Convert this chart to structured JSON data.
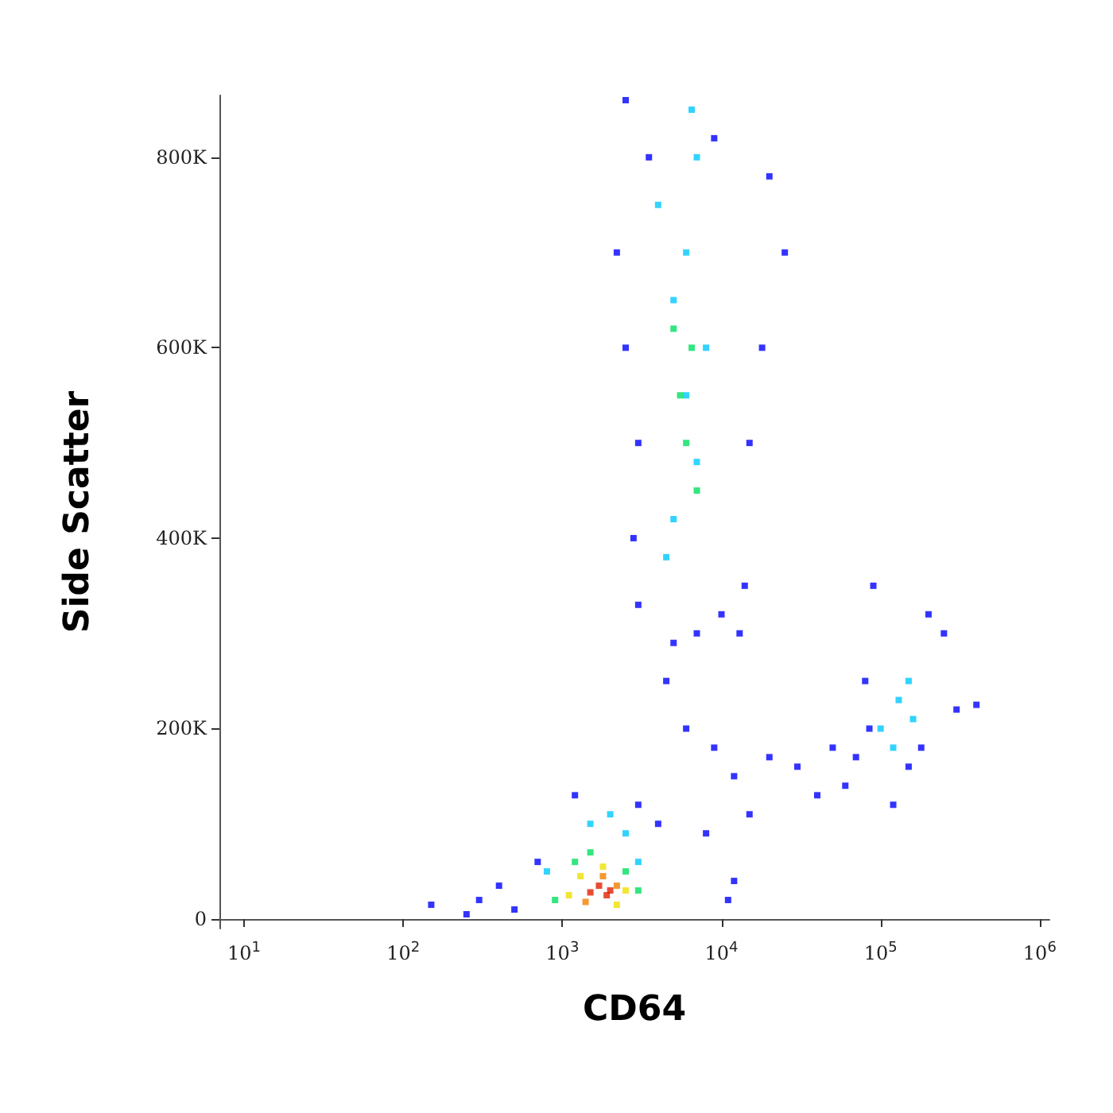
{
  "chart_data": {
    "type": "scatter",
    "xlabel": "CD64",
    "ylabel": "Side Scatter",
    "log": "x",
    "marker": "square",
    "grid": false,
    "xlim": [
      7,
      1150000
    ],
    "xticks": [
      {
        "value": 10,
        "label": "10$^{1}$"
      },
      {
        "value": 100,
        "label": "10$^{2}$"
      },
      {
        "value": 1000,
        "label": "10$^{3}$"
      },
      {
        "value": 10000,
        "label": "10$^{4}$"
      },
      {
        "value": 100000,
        "label": "10$^{5}$"
      },
      {
        "value": 1000000,
        "label": "10$^{6}$"
      }
    ],
    "ylim": [
      -10000,
      865000
    ],
    "yticks": [
      0,
      {
        "value": 200000,
        "label": "200K"
      },
      {
        "value": 400000,
        "label": "400K"
      },
      {
        "value": 600000,
        "label": "600K"
      },
      {
        "value": 800000,
        "label": "800K"
      }
    ],
    "series": [
      {
        "color": "#0000ff",
        "x": [
          300,
          400,
          500,
          700,
          150,
          250,
          3000,
          4000,
          1200,
          8000,
          12000,
          15000,
          2500,
          3500,
          20000,
          25000,
          18000,
          9000,
          2200,
          3000,
          15000,
          2800,
          2500,
          14000,
          13000,
          3000,
          5000,
          7000,
          10000,
          4500,
          6000,
          9000,
          12000,
          30000,
          40000,
          20000,
          50000,
          70000,
          85000,
          60000,
          80000,
          150000,
          250000,
          300000,
          200000,
          90000,
          120000,
          180000,
          400000,
          11000
        ],
        "values": [
          20000,
          35000,
          10000,
          60000,
          15000,
          5000,
          120000,
          100000,
          130000,
          90000,
          40000,
          110000,
          860000,
          800000,
          780000,
          700000,
          600000,
          820000,
          700000,
          500000,
          500000,
          400000,
          600000,
          350000,
          300000,
          330000,
          290000,
          300000,
          320000,
          250000,
          200000,
          180000,
          150000,
          160000,
          130000,
          170000,
          180000,
          170000,
          200000,
          140000,
          250000,
          160000,
          300000,
          220000,
          320000,
          350000,
          120000,
          180000,
          225000,
          20000
        ]
      },
      {
        "color": "#00c8ff",
        "x": [
          4000,
          5000,
          6000,
          7000,
          8000,
          5000,
          6000,
          4500,
          7000,
          6500,
          100000,
          130000,
          150000,
          120000,
          160000,
          1500,
          2500,
          800,
          3000,
          2000
        ],
        "values": [
          750000,
          650000,
          550000,
          480000,
          600000,
          420000,
          700000,
          380000,
          800000,
          850000,
          200000,
          230000,
          250000,
          180000,
          210000,
          100000,
          90000,
          50000,
          60000,
          110000
        ]
      },
      {
        "color": "#00e060",
        "x": [
          5500,
          6000,
          6500,
          5000,
          7000,
          1200,
          1500,
          2500,
          3000,
          900
        ],
        "values": [
          550000,
          500000,
          600000,
          620000,
          450000,
          60000,
          70000,
          50000,
          30000,
          20000
        ]
      },
      {
        "color": "#f0e000",
        "x": [
          1300,
          1800,
          2500,
          1100,
          2200
        ],
        "values": [
          45000,
          55000,
          30000,
          25000,
          15000
        ]
      },
      {
        "color": "#f08000",
        "x": [
          1400,
          2200,
          1800
        ],
        "values": [
          18000,
          35000,
          45000
        ]
      },
      {
        "color": "#e02000",
        "x": [
          1500,
          1700,
          2000,
          1900
        ],
        "values": [
          28000,
          35000,
          30000,
          25000
        ]
      }
    ]
  }
}
